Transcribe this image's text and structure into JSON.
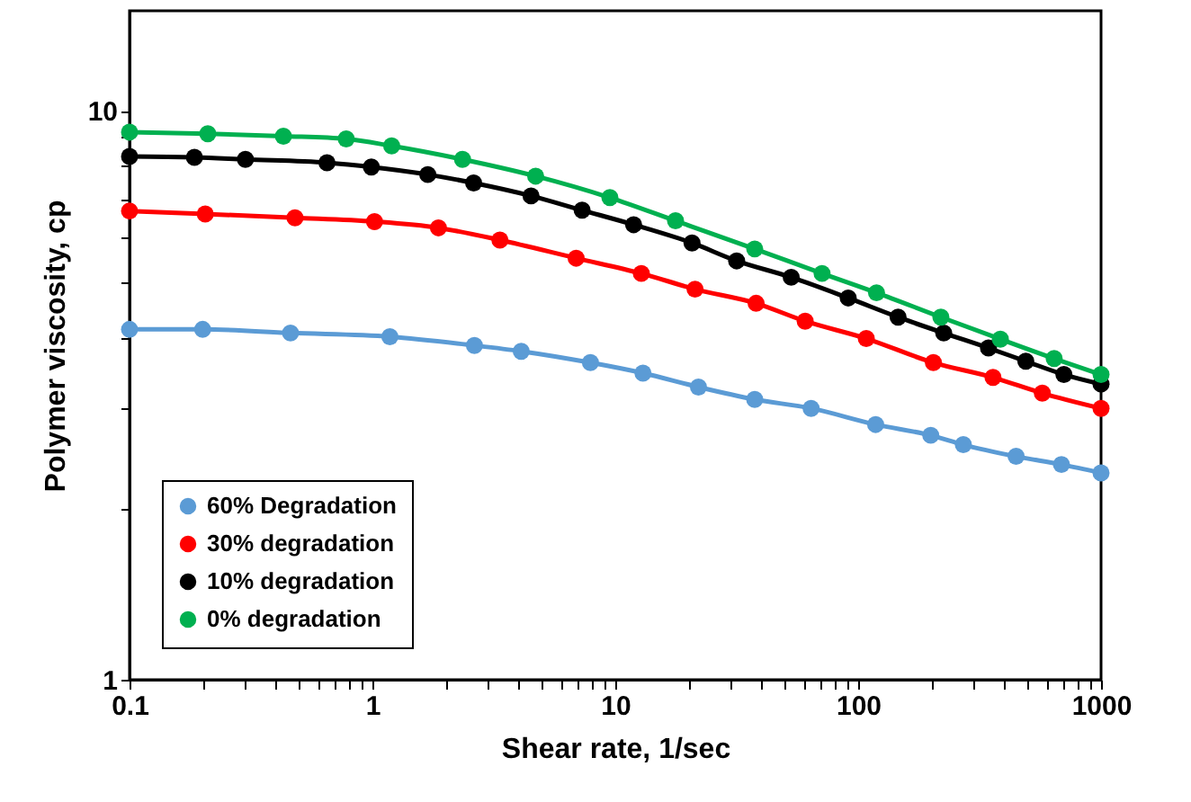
{
  "chart_data": {
    "type": "line",
    "xlabel": "Shear rate, 1/sec",
    "ylabel": "Polymer viscosity, cp",
    "log": "xy",
    "xlim": [
      0.1,
      1000
    ],
    "ylim": [
      1,
      15
    ],
    "xticks": [
      0.1,
      {
        "value": 0.2,
        "label": null
      },
      {
        "value": 0.3,
        "label": null
      },
      {
        "value": 0.4,
        "label": null
      },
      {
        "value": 0.5,
        "label": null
      },
      {
        "value": 0.6,
        "label": null
      },
      {
        "value": 0.7,
        "label": null
      },
      {
        "value": 0.8,
        "label": null
      },
      {
        "value": 0.9,
        "label": null
      },
      1,
      {
        "value": 2,
        "label": null
      },
      {
        "value": 3,
        "label": null
      },
      {
        "value": 4,
        "label": null
      },
      {
        "value": 5,
        "label": null
      },
      {
        "value": 6,
        "label": null
      },
      {
        "value": 7,
        "label": null
      },
      {
        "value": 8,
        "label": null
      },
      {
        "value": 9,
        "label": null
      },
      10,
      {
        "value": 20,
        "label": null
      },
      {
        "value": 30,
        "label": null
      },
      {
        "value": 40,
        "label": null
      },
      {
        "value": 50,
        "label": null
      },
      {
        "value": 60,
        "label": null
      },
      {
        "value": 70,
        "label": null
      },
      {
        "value": 80,
        "label": null
      },
      {
        "value": 90,
        "label": null
      },
      100,
      {
        "value": 200,
        "label": null
      },
      {
        "value": 300,
        "label": null
      },
      {
        "value": 400,
        "label": null
      },
      {
        "value": 500,
        "label": null
      },
      {
        "value": 600,
        "label": null
      },
      {
        "value": 700,
        "label": null
      },
      {
        "value": 800,
        "label": null
      },
      {
        "value": 900,
        "label": null
      },
      1000
    ],
    "yticks": [
      1,
      {
        "value": 2,
        "label": null
      },
      {
        "value": 3,
        "label": null
      },
      {
        "value": 4,
        "label": null
      },
      {
        "value": 5,
        "label": null
      },
      {
        "value": 6,
        "label": null
      },
      {
        "value": 7,
        "label": null
      },
      {
        "value": 8,
        "label": null
      },
      {
        "value": 9,
        "label": null
      },
      10
    ],
    "grid": false,
    "legend": "bottom left",
    "marker": "circle",
    "line_style": "solid",
    "series": [
      {
        "name": "60% Degradation",
        "color": "#5b9bd5",
        "x": [
          0.1,
          0.2,
          0.46,
          1.18,
          2.63,
          4.1,
          7.9,
          13,
          22,
          37.5,
          64,
          118,
          199,
          271,
          447,
          687,
          1000
        ],
        "values": [
          4.13,
          4.13,
          4.07,
          4.01,
          3.87,
          3.78,
          3.61,
          3.46,
          3.27,
          3.11,
          3.0,
          2.81,
          2.69,
          2.59,
          2.47,
          2.39,
          2.31
        ]
      },
      {
        "name": "30% degradation",
        "color": "#ff0000",
        "x": [
          0.1,
          0.205,
          0.48,
          1.02,
          1.87,
          3.35,
          6.9,
          12.8,
          21.3,
          38,
          60.5,
          108,
          204,
          359,
          573,
          1000
        ],
        "values": [
          6.67,
          6.59,
          6.49,
          6.39,
          6.23,
          5.93,
          5.51,
          5.18,
          4.86,
          4.59,
          4.27,
          3.98,
          3.61,
          3.4,
          3.19,
          3.0
        ]
      },
      {
        "name": "10% degradation",
        "color": "#000000",
        "x": [
          0.1,
          0.185,
          0.3,
          0.65,
          0.99,
          1.69,
          2.61,
          4.5,
          7.3,
          11.9,
          20.7,
          31.6,
          53,
          91,
          146,
          225,
          344,
          490,
          703,
          1000
        ],
        "values": [
          8.32,
          8.29,
          8.22,
          8.11,
          7.97,
          7.73,
          7.47,
          7.09,
          6.69,
          6.31,
          5.86,
          5.45,
          5.1,
          4.69,
          4.34,
          4.07,
          3.83,
          3.63,
          3.44,
          3.31
        ]
      },
      {
        "name": "0% degradation",
        "color": "#00b050",
        "x": [
          0.1,
          0.21,
          0.43,
          0.78,
          1.2,
          2.35,
          4.7,
          9.5,
          17.7,
          37.5,
          71,
          119,
          219,
          385,
          641,
          1000
        ],
        "values": [
          9.18,
          9.12,
          9.03,
          8.93,
          8.68,
          8.22,
          7.68,
          7.04,
          6.41,
          5.72,
          5.18,
          4.79,
          4.34,
          3.97,
          3.67,
          3.44
        ]
      }
    ]
  }
}
